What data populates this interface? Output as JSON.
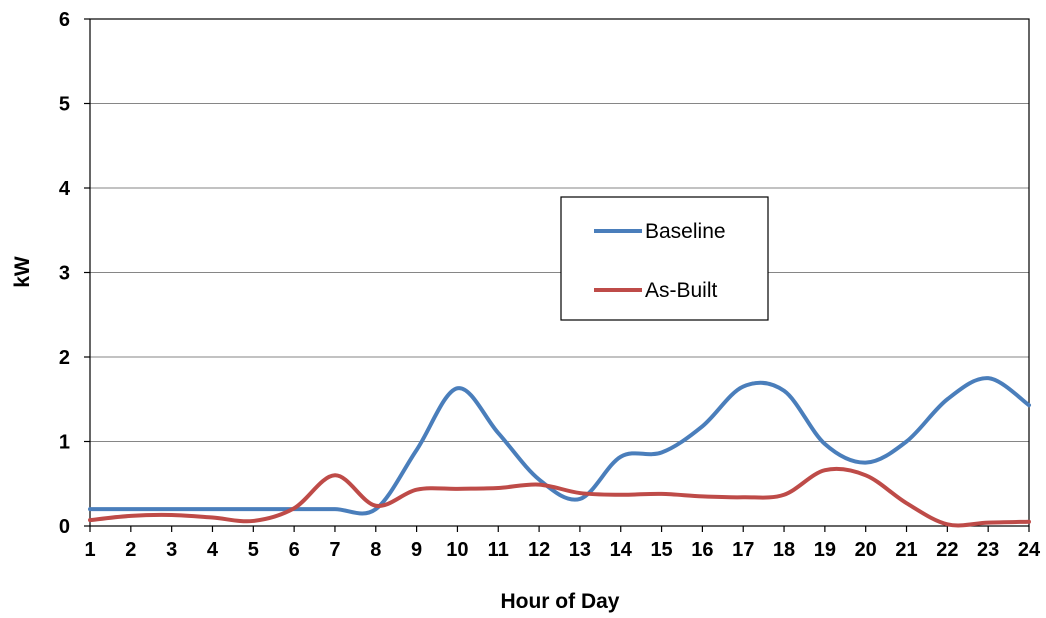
{
  "chart_data": {
    "type": "line",
    "title": "",
    "xlabel": "Hour of Day",
    "ylabel": "kW",
    "x": [
      1,
      2,
      3,
      4,
      5,
      6,
      7,
      8,
      9,
      10,
      11,
      12,
      13,
      14,
      15,
      16,
      17,
      18,
      19,
      20,
      21,
      22,
      23,
      24
    ],
    "categories": [
      "1",
      "2",
      "3",
      "4",
      "5",
      "6",
      "7",
      "8",
      "9",
      "10",
      "11",
      "12",
      "13",
      "14",
      "15",
      "16",
      "17",
      "18",
      "19",
      "20",
      "21",
      "22",
      "23",
      "24"
    ],
    "ylim": [
      0,
      6
    ],
    "yticks": [
      "0",
      "1",
      "2",
      "3",
      "4",
      "5",
      "6"
    ],
    "grid": true,
    "smooth": true,
    "legend_position": "center-right",
    "series": [
      {
        "name": "Baseline",
        "color": "#4a7ebb",
        "values": [
          0.2,
          0.2,
          0.2,
          0.2,
          0.2,
          0.2,
          0.2,
          0.2,
          0.9,
          1.63,
          1.1,
          0.55,
          0.32,
          0.82,
          0.87,
          1.18,
          1.65,
          1.6,
          0.97,
          0.75,
          1.0,
          1.5,
          1.75,
          1.43
        ]
      },
      {
        "name": "As-Built",
        "color": "#be4b48",
        "values": [
          0.07,
          0.12,
          0.13,
          0.1,
          0.06,
          0.21,
          0.6,
          0.24,
          0.43,
          0.44,
          0.45,
          0.49,
          0.39,
          0.37,
          0.38,
          0.35,
          0.34,
          0.37,
          0.66,
          0.6,
          0.27,
          0.02,
          0.04,
          0.05
        ]
      }
    ]
  }
}
